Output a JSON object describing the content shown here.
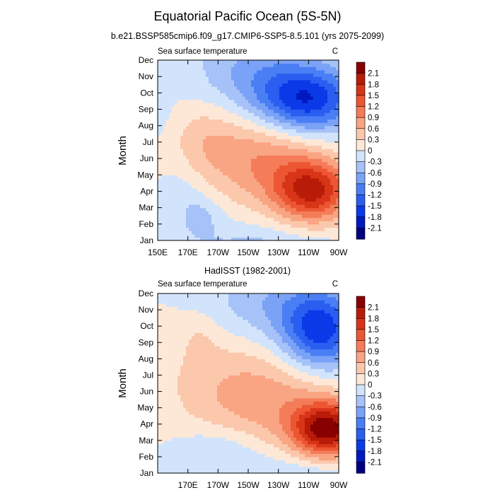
{
  "figure": {
    "title": "Equatorial Pacific Ocean (5S-5N)",
    "palette": [
      "#000080",
      "#0018c0",
      "#0a3ae8",
      "#2a5ef0",
      "#4a7ef4",
      "#7aa2f6",
      "#a6c2f8",
      "#d2e4fb",
      "#fde8d8",
      "#fbc8ac",
      "#f9a482",
      "#f47c58",
      "#ec5632",
      "#d83418",
      "#b81c08",
      "#880000"
    ]
  },
  "chart_data": [
    {
      "type": "heatmap",
      "title": "b.e21.BSSP585cmip6.f09_g17.CMIP6-SSP5-8.5.101 (yrs 2075-2099)",
      "left_label": "Sea surface temperature",
      "right_label": "C",
      "ylabel": "Month",
      "y_ticks": [
        "Jan",
        "Feb",
        "Mar",
        "Apr",
        "May",
        "Jun",
        "Jul",
        "Aug",
        "Sep",
        "Oct",
        "Nov",
        "Dec"
      ],
      "x_ticks": [
        "150E",
        "170E",
        "170W",
        "150W",
        "130W",
        "110W",
        "90W"
      ],
      "x_range": [
        150,
        270
      ],
      "colorbar_labels": [
        "2.1",
        "1.8",
        "1.5",
        "1.2",
        "0.9",
        "0.6",
        "0.3",
        "0",
        "-0.3",
        "-0.6",
        "-0.9",
        "-1.2",
        "-1.5",
        "-1.8",
        "-2.1"
      ],
      "levels": [
        -2.1,
        -1.8,
        -1.5,
        -1.2,
        -0.9,
        -0.6,
        -0.3,
        0,
        0.3,
        0.6,
        0.9,
        1.2,
        1.5,
        1.8,
        2.1
      ],
      "features": [
        {
          "lon": 253,
          "month": 3.0,
          "amp": 1.75,
          "slon": 18,
          "smon": 1.3
        },
        {
          "lon": 220,
          "month": 5.0,
          "amp": 0.9,
          "slon": 30,
          "smon": 2.0
        },
        {
          "lon": 180,
          "month": 6.3,
          "amp": 0.3,
          "slon": 14,
          "smon": 1.4
        },
        {
          "lon": 248,
          "month": 8.6,
          "amp": -1.85,
          "slon": 24,
          "smon": 1.5
        },
        {
          "lon": 210,
          "month": 10.5,
          "amp": -0.55,
          "slon": 26,
          "smon": 1.6
        },
        {
          "lon": 178,
          "month": 1.5,
          "amp": -0.42,
          "slon": 10,
          "smon": 1.0
        },
        {
          "lon": 165,
          "month": 3.2,
          "amp": -0.18,
          "slon": 10,
          "smon": 1.2
        },
        {
          "lon": 150,
          "month": 8.0,
          "amp": -0.2,
          "slon": 6,
          "smon": 1.2
        }
      ]
    },
    {
      "type": "heatmap",
      "title": "HadISST (1982-2001)",
      "left_label": "Sea surface temperature",
      "right_label": "C",
      "ylabel": "Month",
      "y_ticks": [
        "Jan",
        "Feb",
        "Mar",
        "Apr",
        "May",
        "Jun",
        "Jul",
        "Aug",
        "Sep",
        "Oct",
        "Nov",
        "Dec"
      ],
      "x_ticks": [
        "",
        "170E",
        "170W",
        "150W",
        "130W",
        "110W",
        "90W"
      ],
      "x_range": [
        150,
        270
      ],
      "colorbar_labels": [
        "2.1",
        "1.8",
        "1.5",
        "1.2",
        "0.9",
        "0.6",
        "0.3",
        "0",
        "-0.3",
        "-0.6",
        "-0.9",
        "-1.2",
        "-1.5",
        "-1.8",
        "-2.1"
      ],
      "levels": [
        -2.1,
        -1.8,
        -1.5,
        -1.2,
        -0.9,
        -0.6,
        -0.3,
        0,
        0.3,
        0.6,
        0.9,
        1.2,
        1.5,
        1.8,
        2.1
      ],
      "features": [
        {
          "lon": 262,
          "month": 2.7,
          "amp": 2.15,
          "slon": 16,
          "smon": 1.2
        },
        {
          "lon": 225,
          "month": 4.5,
          "amp": 0.75,
          "slon": 32,
          "smon": 2.3
        },
        {
          "lon": 180,
          "month": 6.0,
          "amp": 0.25,
          "slon": 24,
          "smon": 2.5
        },
        {
          "lon": 258,
          "month": 8.7,
          "amp": -1.65,
          "slon": 18,
          "smon": 1.7
        },
        {
          "lon": 225,
          "month": 10.5,
          "amp": -0.55,
          "slon": 30,
          "smon": 1.8
        },
        {
          "lon": 190,
          "month": 1.6,
          "amp": -0.35,
          "slon": 20,
          "smon": 1.0
        },
        {
          "lon": 178,
          "month": 8.3,
          "amp": 0.2,
          "slon": 8,
          "smon": 1.0
        }
      ]
    }
  ]
}
